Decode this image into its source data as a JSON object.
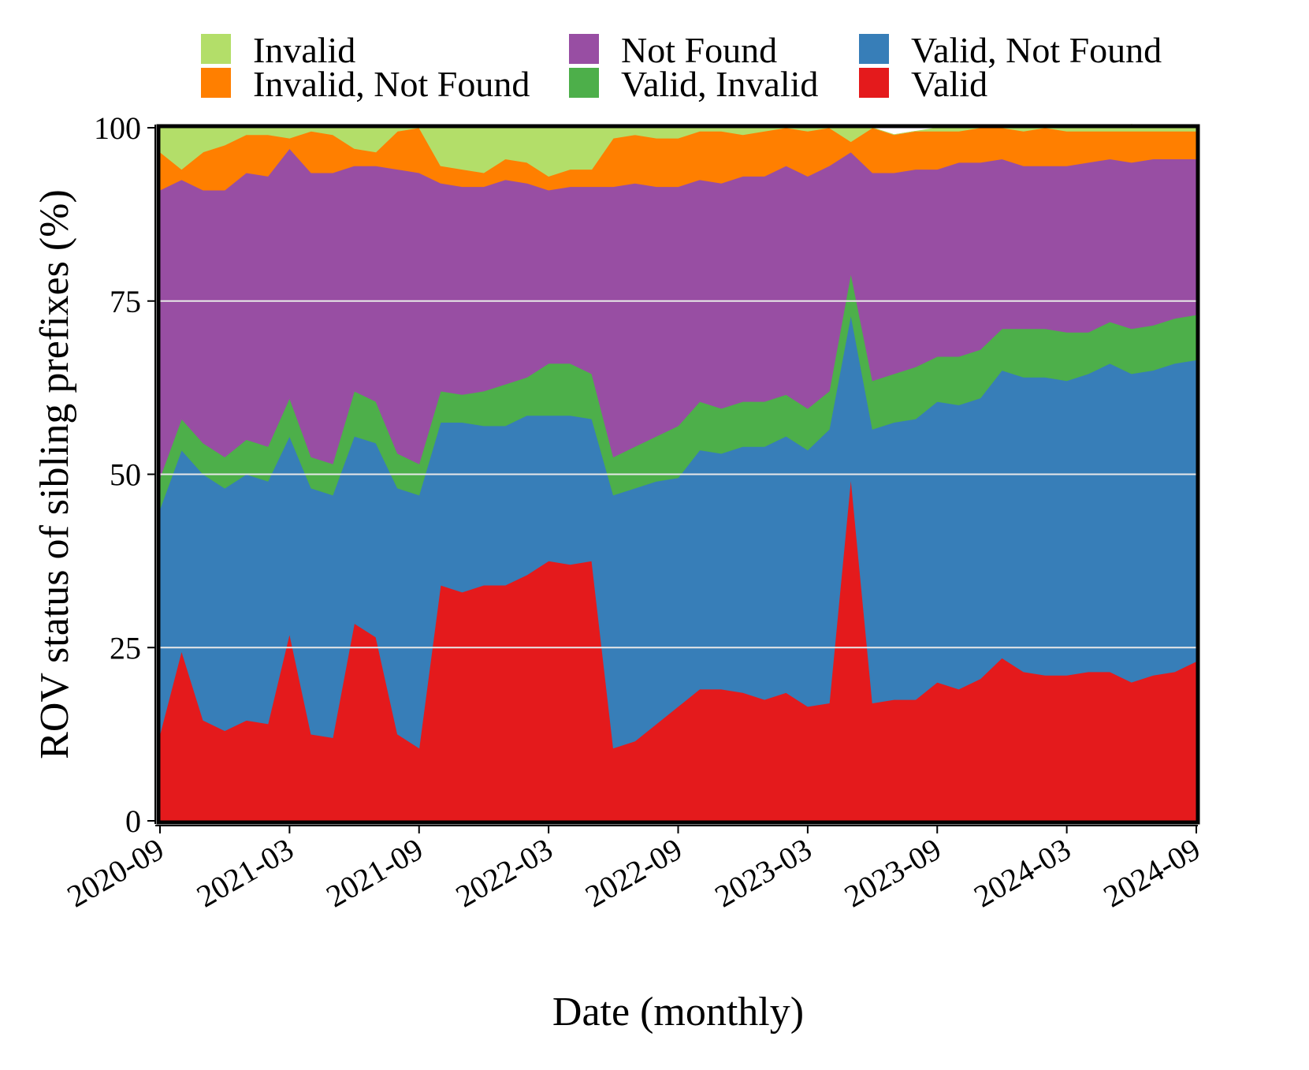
{
  "chart_data": {
    "type": "area",
    "stacked": true,
    "xlabel": "Date (monthly)",
    "ylabel": "ROV status of sibling prefixes (%)",
    "ylim": [
      0,
      100
    ],
    "yticks": [
      0,
      25,
      50,
      75,
      100
    ],
    "xticks": [
      "2020-09",
      "2021-03",
      "2021-09",
      "2022-03",
      "2022-09",
      "2023-03",
      "2023-09",
      "2024-03",
      "2024-09"
    ],
    "grid": "horizontal",
    "legend_position": "top",
    "legend_order": [
      "Invalid",
      "Not Found",
      "Valid, Not Found",
      "Invalid, Not Found",
      "Valid, Invalid",
      "Valid"
    ],
    "x": [
      0,
      1,
      2,
      3,
      4,
      5,
      6,
      7,
      8,
      9,
      10,
      11,
      12,
      13,
      14,
      15,
      16,
      17,
      18,
      19,
      20,
      21,
      22,
      23,
      24,
      25,
      26,
      27,
      28,
      29,
      30,
      31,
      32,
      33,
      34,
      35,
      36,
      37,
      38,
      39,
      40,
      41,
      42,
      43,
      44,
      45,
      46,
      47,
      48
    ],
    "categories": [
      "2020-09",
      "2020-10",
      "2020-11",
      "2020-12",
      "2021-01",
      "2021-02",
      "2021-03",
      "2021-04",
      "2021-05",
      "2021-06",
      "2021-07",
      "2021-08",
      "2021-09",
      "2021-10",
      "2021-11",
      "2021-12",
      "2022-01",
      "2022-02",
      "2022-03",
      "2022-04",
      "2022-05",
      "2022-06",
      "2022-07",
      "2022-08",
      "2022-09",
      "2022-10",
      "2022-11",
      "2022-12",
      "2023-01",
      "2023-02",
      "2023-03",
      "2023-04",
      "2023-05",
      "2023-06",
      "2023-07",
      "2023-08",
      "2023-09",
      "2023-10",
      "2023-11",
      "2023-12",
      "2024-01",
      "2024-02",
      "2024-03",
      "2024-04",
      "2024-05",
      "2024-06",
      "2024-07",
      "2024-08",
      "2024-09"
    ],
    "series": [
      {
        "name": "Valid",
        "color": "#e41a1c",
        "values": [
          12.5,
          24.5,
          14.5,
          13,
          14.5,
          14,
          27,
          12.5,
          12,
          28.5,
          26.5,
          12.5,
          10.5,
          34,
          33,
          34,
          34,
          35.5,
          37.5,
          37,
          37.5,
          10.5,
          11.5,
          14,
          16.5,
          19,
          19,
          18.5,
          17.5,
          18.5,
          16.5,
          17,
          49.5,
          17,
          17.5,
          17.5,
          20,
          19,
          20.5,
          23.5,
          21.5,
          21,
          21,
          21.5,
          21.5,
          20,
          21,
          21.5,
          23
        ]
      },
      {
        "name": "Valid, Not Found",
        "color": "#377eb8",
        "values": [
          32.5,
          29,
          35.5,
          35,
          35.5,
          35,
          28.5,
          35.5,
          35,
          27,
          28,
          35.5,
          36.5,
          23.5,
          24.5,
          23,
          23,
          23,
          21,
          21.5,
          20.5,
          36.5,
          36.5,
          35,
          33,
          34.5,
          34,
          35.5,
          36.5,
          37,
          37,
          39.5,
          23.5,
          39.5,
          40,
          40.5,
          40.5,
          41,
          40.5,
          41.5,
          42.5,
          43,
          42.5,
          43,
          44.5,
          44.5,
          44,
          44.5,
          43.5
        ]
      },
      {
        "name": "Valid, Invalid",
        "color": "#4daf4a",
        "values": [
          4.5,
          4.5,
          4.5,
          4.5,
          5,
          5,
          5.5,
          4.5,
          4.5,
          6.5,
          6,
          5,
          4.5,
          4.5,
          4,
          5,
          6,
          5.5,
          7.5,
          7.5,
          6.5,
          5.5,
          6,
          6.5,
          7.5,
          7,
          6.5,
          6.5,
          6.5,
          6,
          6,
          5.5,
          6,
          7,
          7,
          7.5,
          6.5,
          7,
          7,
          6,
          7,
          7,
          7,
          6,
          6,
          6.5,
          6.5,
          6.5,
          6.5
        ]
      },
      {
        "name": "Not Found",
        "color": "#984ea3",
        "values": [
          41.5,
          34.5,
          36.5,
          38.5,
          38.5,
          39,
          36,
          41,
          42,
          32.5,
          34,
          41,
          42,
          30,
          30,
          29.5,
          29.5,
          28,
          25,
          25.5,
          27,
          39,
          38,
          36,
          34.5,
          32,
          32.5,
          32.5,
          32.5,
          33,
          33.5,
          32.5,
          17.5,
          30,
          29,
          28.5,
          27,
          28,
          27,
          24.5,
          23.5,
          23.5,
          24,
          24.5,
          23.5,
          24,
          24,
          23,
          22.5
        ]
      },
      {
        "name": "Invalid, Not Found",
        "color": "#ff7f00",
        "values": [
          5.5,
          1.5,
          5.5,
          6.5,
          5.5,
          6,
          1.5,
          6,
          5.5,
          2.5,
          2,
          5.5,
          6.5,
          2.5,
          2.5,
          2,
          3,
          3,
          2,
          2.5,
          2.5,
          7,
          7,
          7,
          7,
          7,
          7.5,
          6,
          6.5,
          5.5,
          6.5,
          5.5,
          1.5,
          6.5,
          5.5,
          5.5,
          5.5,
          4.5,
          5,
          4.5,
          5,
          5.5,
          5,
          4.5,
          4,
          4.5,
          4,
          4,
          4
        ]
      },
      {
        "name": "Invalid",
        "color": "#b3de69",
        "values": [
          3.5,
          6,
          3.5,
          2.5,
          1,
          1,
          1.5,
          0.5,
          1,
          3,
          3.5,
          0.5,
          0,
          5.5,
          6,
          6.5,
          4.5,
          5,
          7,
          6,
          6,
          1.5,
          1,
          1.5,
          1.5,
          0.5,
          0.5,
          1,
          0.5,
          0,
          0.5,
          0,
          2,
          0,
          0,
          0,
          0.5,
          0.5,
          0,
          0,
          0.5,
          0,
          0.5,
          0.5,
          0.5,
          1,
          0.5,
          0.5,
          0.5
        ]
      }
    ]
  }
}
